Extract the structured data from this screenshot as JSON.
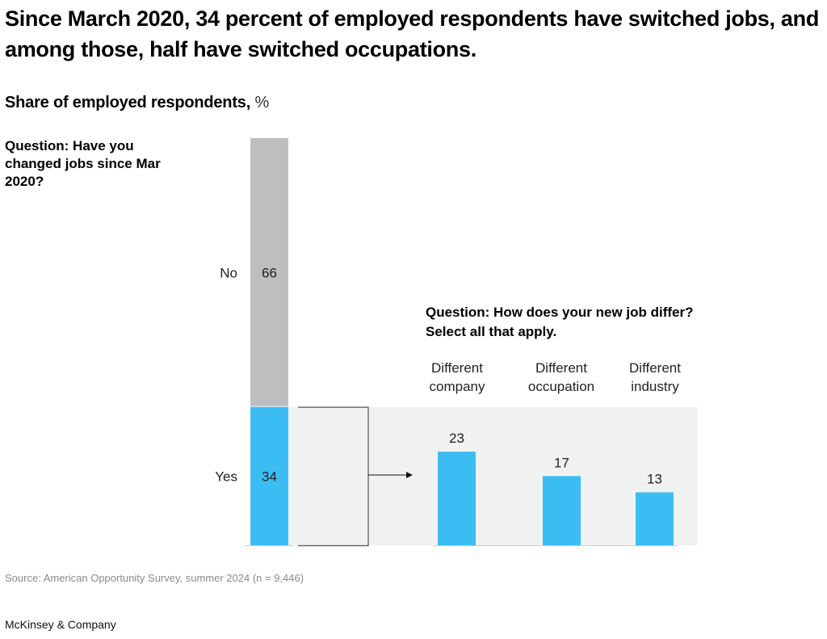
{
  "title": "Since March 2020, 34 percent of employed respondents have switched jobs, and among those, half have switched occupations.",
  "subtitle": {
    "label": "Share of employed respondents,",
    "unit": "%"
  },
  "source": "Source: American Opportunity Survey, summer 2024 (n = 9,446)",
  "brand": "McKinsey & Company",
  "colors": {
    "accent": "#3BBDF3",
    "no_bar": "#BDBEC0",
    "panel": "#F0F1F1",
    "bracket": "#555555"
  },
  "chart_data": [
    {
      "type": "bar",
      "stacked": true,
      "title": "Question: Have you changed jobs since Mar 2020?",
      "categories": [
        "Yes",
        "No"
      ],
      "values": [
        34,
        66
      ],
      "ylim": [
        0,
        100
      ],
      "grid": false
    },
    {
      "type": "bar",
      "title": "Question: How does your new job differ? Select all that apply.",
      "categories": [
        "Different company",
        "Different occupation",
        "Different industry"
      ],
      "category_lines": [
        [
          "Different",
          "company"
        ],
        [
          "Different",
          "occupation"
        ],
        [
          "Different",
          "industry"
        ]
      ],
      "values": [
        23,
        17,
        13
      ],
      "ylim": [
        0,
        34
      ],
      "grid": false
    }
  ]
}
